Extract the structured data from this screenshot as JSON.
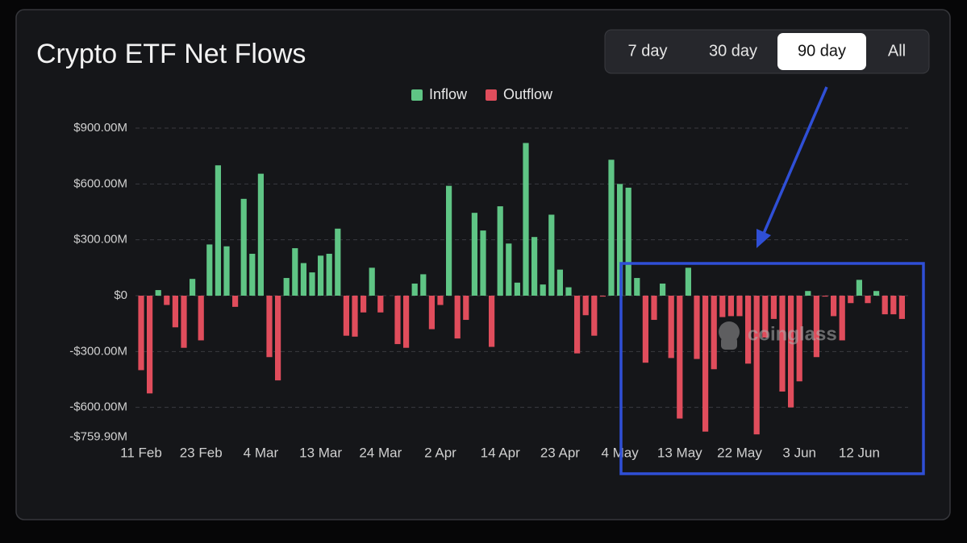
{
  "chart_data": {
    "type": "bar",
    "title": "Crypto ETF Net Flows",
    "watermark": "coinglass",
    "range_options": [
      "7 day",
      "30 day",
      "90 day",
      "All"
    ],
    "active_range": 2,
    "categories": [
      "11 Feb",
      null,
      null,
      null,
      null,
      null,
      null,
      "23 Feb",
      null,
      null,
      null,
      null,
      null,
      null,
      "4 Mar",
      null,
      null,
      null,
      null,
      null,
      null,
      "13 Mar",
      null,
      null,
      null,
      null,
      null,
      null,
      "24 Mar",
      null,
      null,
      null,
      null,
      null,
      null,
      "2 Apr",
      null,
      null,
      null,
      null,
      null,
      null,
      "14 Apr",
      null,
      null,
      null,
      null,
      null,
      null,
      "23 Apr",
      null,
      null,
      null,
      null,
      null,
      null,
      "4 May",
      null,
      null,
      null,
      null,
      null,
      null,
      "13 May",
      null,
      null,
      null,
      null,
      null,
      null,
      "22 May",
      null,
      null,
      null,
      null,
      null,
      null,
      "3 Jun",
      null,
      null,
      null,
      null,
      null,
      null,
      "12 Jun",
      null,
      null,
      null,
      null,
      null
    ],
    "series": [
      {
        "name": "Inflow",
        "color": "#5fc585",
        "values": [
          null,
          null,
          30,
          null,
          null,
          null,
          90,
          null,
          275,
          700,
          265,
          null,
          520,
          225,
          655,
          null,
          null,
          95,
          255,
          175,
          125,
          215,
          225,
          360,
          null,
          null,
          null,
          150,
          null,
          null,
          null,
          null,
          65,
          115,
          null,
          null,
          590,
          null,
          null,
          445,
          350,
          null,
          480,
          280,
          70,
          820,
          315,
          60,
          435,
          140,
          45,
          null,
          null,
          null,
          null,
          730,
          600,
          580,
          95,
          null,
          null,
          65,
          null,
          null,
          150,
          null,
          null,
          null,
          null,
          null,
          null,
          null,
          null,
          null,
          null,
          null,
          null,
          null,
          25,
          null,
          null,
          null,
          null,
          null,
          85,
          null,
          25,
          null,
          null,
          null
        ]
      },
      {
        "name": "Outflow",
        "color": "#e04d5c",
        "values": [
          -400,
          -525,
          null,
          -50,
          -170,
          -280,
          null,
          -240,
          null,
          null,
          null,
          -60,
          null,
          null,
          null,
          -330,
          -455,
          null,
          null,
          null,
          null,
          null,
          null,
          null,
          -215,
          -220,
          -90,
          null,
          -90,
          null,
          -260,
          -280,
          null,
          null,
          -180,
          -50,
          null,
          -230,
          -130,
          null,
          null,
          -275,
          null,
          null,
          null,
          null,
          null,
          null,
          null,
          null,
          null,
          -310,
          -105,
          -215,
          -5,
          null,
          null,
          null,
          null,
          -360,
          -130,
          null,
          -335,
          -660,
          null,
          -340,
          -730,
          -395,
          -115,
          -110,
          -110,
          -365,
          -745,
          -225,
          -125,
          -515,
          -600,
          -460,
          null,
          -330,
          -5,
          -110,
          -240,
          -40,
          null,
          -40,
          null,
          -100,
          -100,
          -125
        ]
      }
    ],
    "ylim": [
      -759.9,
      900
    ],
    "yticks": [
      {
        "value": 900,
        "label": "$900.00M"
      },
      {
        "value": 600,
        "label": "$600.00M"
      },
      {
        "value": 300,
        "label": "$300.00M"
      },
      {
        "value": 0,
        "label": "$0"
      },
      {
        "value": -300,
        "label": "-$300.00M"
      },
      {
        "value": -600,
        "label": "-$600.00M"
      },
      {
        "value": -759.9,
        "label": "-$759.90M"
      }
    ],
    "grid": true
  }
}
